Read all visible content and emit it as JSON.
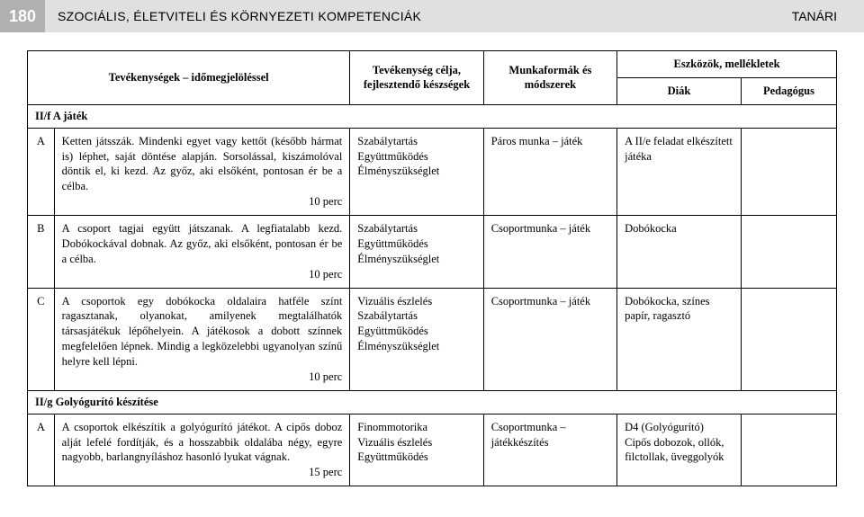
{
  "header": {
    "page_number": "180",
    "title_left": "SZOCIÁLIS, ÉLETVITELI ÉS KÖRNYEZETI KOMPETENCIÁK",
    "title_right": "TANÁRI"
  },
  "table": {
    "head": {
      "col1": "Tevékenységek – időmegjelöléssel",
      "col2": "Tevékenység célja, fejlesztendő készségek",
      "col3": "Munkaformák és módszerek",
      "col4_group": "Eszközök, mellékletek",
      "col4a": "Diák",
      "col4b": "Pedagógus"
    },
    "sections": [
      {
        "id": "s1",
        "label": "II/f A játék"
      },
      {
        "id": "s2",
        "label": "II/g Golyógurító készítése"
      }
    ],
    "rows": [
      {
        "letter": "A",
        "activity": "Ketten játsszák. Mindenki egyet vagy kettőt (később hármat is) léphet, saját döntése alapján. Sorsolással, kiszámolóval döntik el, ki kezd. Az győz, aki elsőként, pontosan ér be a célba.",
        "time": "10 perc",
        "goal": "Szabálytartás\nEgyüttműködés\nÉlményszükséglet",
        "method": "Páros munka – játék",
        "diak": "A II/e feladat elkészített játéka",
        "ped": ""
      },
      {
        "letter": "B",
        "activity": "A csoport tagjai együtt játszanak. A legfiatalabb kezd. Dobókockával dobnak. Az győz, aki elsőként, pontosan ér be a célba.",
        "time": "10 perc",
        "goal": "Szabálytartás\nEgyüttműködés\nÉlményszükséglet",
        "method": "Csoportmunka – játék",
        "diak": "Dobókocka",
        "ped": ""
      },
      {
        "letter": "C",
        "activity": "A csoportok egy dobókocka oldalaira hatféle színt ragasztanak, olyanokat, amilyenek megtalálhatók társasjátékuk lépőhelyein. A játékosok a dobott színnek megfelelően lépnek. Mindig a legközelebbi ugyanolyan színű helyre kell lépni.",
        "time": "10 perc",
        "goal": "Vizuális észlelés\nSzabálytartás\nEgyüttműködés\nÉlményszükséglet",
        "method": "Csoportmunka – játék",
        "diak": "Dobókocka, színes papír, ragasztó",
        "ped": ""
      },
      {
        "letter": "A",
        "activity": "A csoportok elkészítik a golyógurító játékot. A cipős doboz alját lefelé fordítják, és a hosszabbik oldalába négy, egyre nagyobb, barlangnyíláshoz hasonló lyukat vágnak.",
        "time": "15 perc",
        "goal": "Finommotorika\nVizuális észlelés\nEgyüttműködés",
        "method": "Csoportmunka – játékkészítés",
        "diak": "D4 (Golyógurító)\nCipős dobozok, ollók, filctollak, üveggolyók",
        "ped": ""
      }
    ]
  }
}
